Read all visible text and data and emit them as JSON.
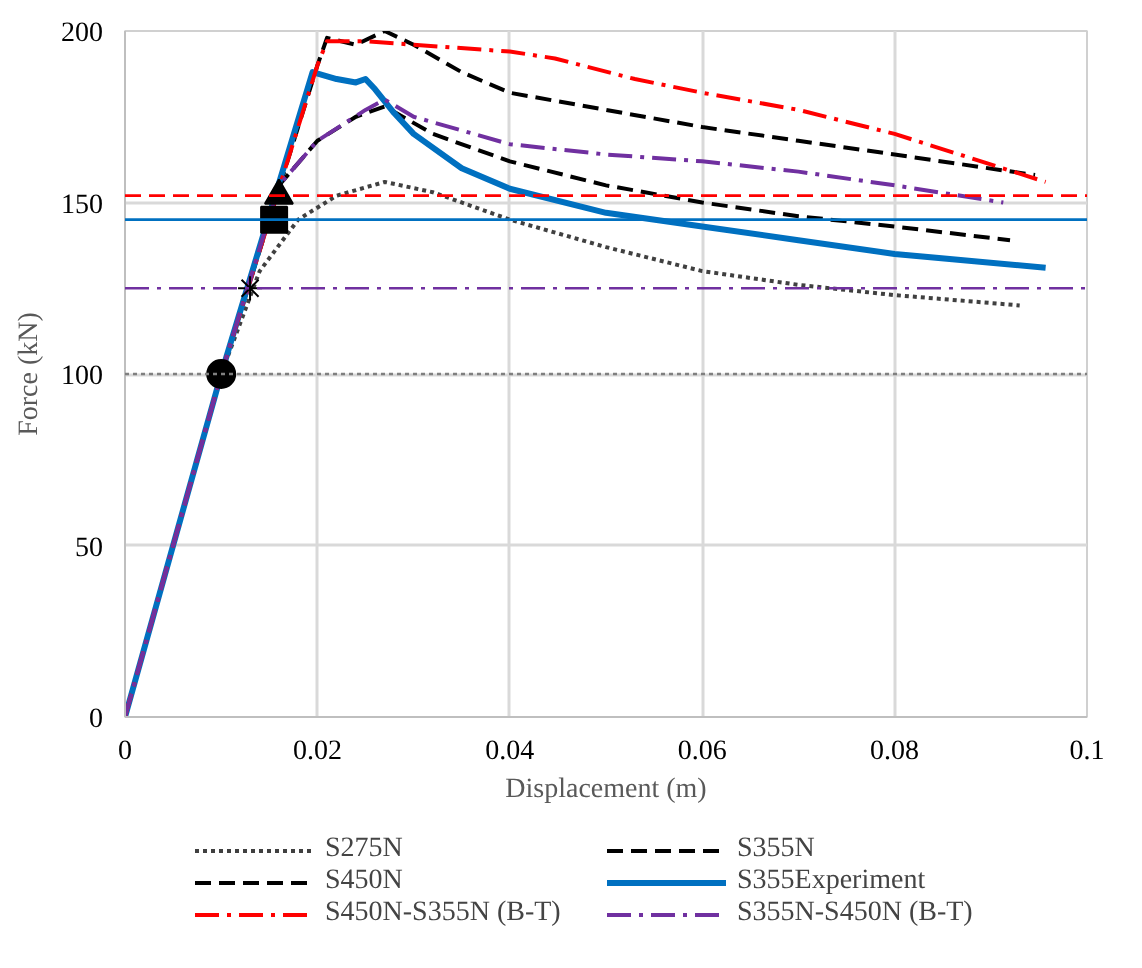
{
  "chart_data": {
    "type": "line",
    "xlabel": "Displacement (m)",
    "ylabel": "Force (kN)",
    "xlim": [
      0,
      0.1
    ],
    "ylim": [
      0,
      200
    ],
    "xticks": [
      0,
      {
        "value": 0.02,
        "label": "0.02"
      },
      {
        "value": 0.04,
        "label": "0.04"
      },
      {
        "value": 0.06,
        "label": "0.06"
      },
      {
        "value": 0.08,
        "label": "0.08"
      },
      {
        "value": 0.1,
        "label": "0.1"
      }
    ],
    "yticks": [
      0,
      50,
      100,
      150,
      200
    ],
    "grid": true,
    "legend": "bottom",
    "series": [
      {
        "name": "S275N",
        "color": "#404040",
        "line_style": "dotted",
        "x": [
          0,
          0.01,
          0.014,
          0.018,
          0.022,
          0.027,
          0.032,
          0.04,
          0.05,
          0.06,
          0.07,
          0.08,
          0.093
        ],
        "values": [
          0,
          100,
          130,
          145,
          152,
          156,
          153,
          145,
          137,
          130,
          126,
          123,
          120
        ]
      },
      {
        "name": "S355N",
        "color": "#000000",
        "line_style": "dashed",
        "x": [
          0,
          0.01,
          0.016,
          0.02,
          0.024,
          0.027,
          0.032,
          0.04,
          0.05,
          0.06,
          0.07,
          0.08,
          0.092
        ],
        "values": [
          0,
          100,
          155,
          168,
          175,
          178,
          170,
          162,
          155,
          150,
          146,
          143,
          139
        ]
      },
      {
        "name": "S450N",
        "color": "#000000",
        "line_style": "dashed",
        "x": [
          0,
          0.01,
          0.02,
          0.021,
          0.024,
          0.027,
          0.03,
          0.035,
          0.04,
          0.05,
          0.06,
          0.07,
          0.08,
          0.0946
        ],
        "values": [
          0,
          100,
          190,
          198,
          196,
          200,
          196,
          188,
          182,
          177,
          172,
          168,
          164,
          158
        ]
      },
      {
        "name": "S355Experiment",
        "color": "#0070c0",
        "line_style": "solid",
        "x": [
          0,
          0.01,
          0.0195,
          0.022,
          0.024,
          0.025,
          0.026,
          0.028,
          0.03,
          0.035,
          0.04,
          0.05,
          0.06,
          0.07,
          0.08,
          0.0957
        ],
        "values": [
          0,
          100,
          188,
          186,
          185,
          186,
          183,
          176,
          170,
          160,
          154,
          147,
          143,
          139,
          135,
          131
        ]
      },
      {
        "name": "S450N-S355N (B-T)",
        "color": "#ff0000",
        "line_style": "dashdot",
        "x": [
          0,
          0.01,
          0.02,
          0.021,
          0.025,
          0.03,
          0.04,
          0.0447,
          0.053,
          0.06,
          0.07,
          0.08,
          0.0957
        ],
        "values": [
          0,
          100,
          190,
          197,
          197,
          196,
          194,
          192,
          186,
          182,
          177,
          170,
          156
        ]
      },
      {
        "name": "S355N-S450N (B-T)",
        "color": "#7030a0",
        "line_style": "dashdot",
        "x": [
          0,
          0.01,
          0.016,
          0.02,
          0.025,
          0.027,
          0.03,
          0.04,
          0.05,
          0.06,
          0.07,
          0.08,
          0.0913
        ],
        "values": [
          0,
          100,
          155,
          168,
          177,
          180,
          175,
          167,
          164,
          162,
          159,
          155,
          150
        ]
      },
      {
        "type": "scatter",
        "marker": "circle",
        "color": "#000000",
        "x": [
          0.01
        ],
        "values": [
          100
        ]
      },
      {
        "type": "scatter",
        "marker": "cross",
        "color": "#000000",
        "x": [
          0.013
        ],
        "values": [
          125
        ]
      },
      {
        "type": "scatter",
        "marker": "square",
        "color": "#000000",
        "x": [
          0.0155
        ],
        "values": [
          145
        ]
      },
      {
        "type": "scatter",
        "marker": "triangle",
        "color": "#000000",
        "x": [
          0.016
        ],
        "values": [
          152
        ]
      }
    ],
    "ref_lines": [
      {
        "axis": "y",
        "value": 100,
        "color": "#808080",
        "line_style": "dotted"
      },
      {
        "axis": "y",
        "value": 152,
        "color": "#ff0000",
        "line_style": "dashed"
      },
      {
        "axis": "y",
        "value": 145,
        "color": "#0070c0",
        "line_style": "solid"
      },
      {
        "axis": "y",
        "value": 125,
        "color": "#7030a0",
        "line_style": "dashdot"
      }
    ]
  }
}
